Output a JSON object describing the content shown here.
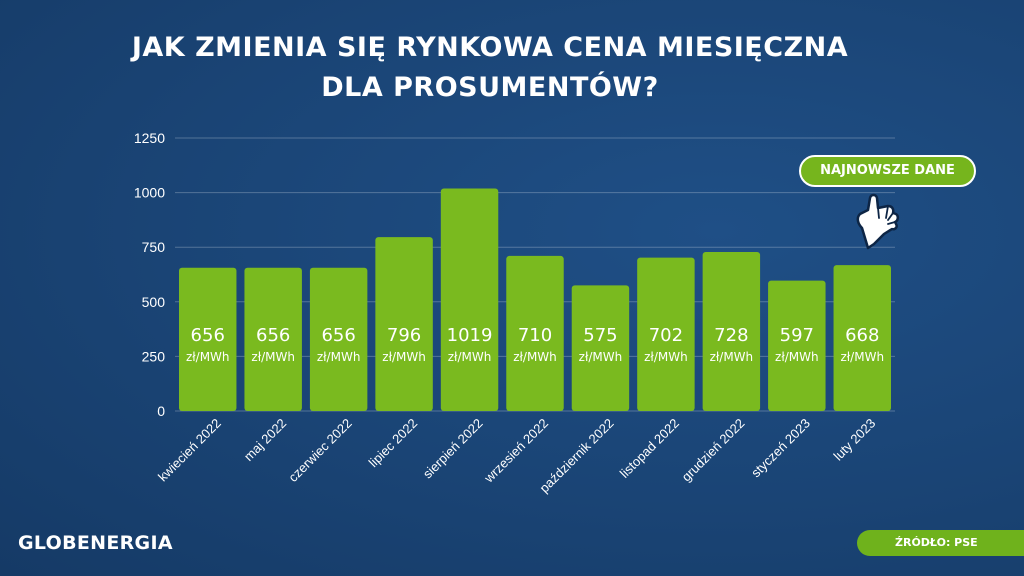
{
  "title": {
    "line1": "JAK ZMIENIA SIĘ RYNKOWA CENA MIESIĘCZNA",
    "line2": "DLA PROSUMENTÓW?"
  },
  "badge_label": "NAJNOWSZE DANE",
  "brand": "GLOBENERGIA",
  "source": "ŹRÓDŁO: PSE",
  "colors": {
    "bar": "#7aba1f",
    "accent": "#6fb21c",
    "background": "#1a4475",
    "text": "#ffffff"
  },
  "chart_data": {
    "type": "bar",
    "categories": [
      "kwiecień 2022",
      "maj 2022",
      "czerwiec 2022",
      "lipiec 2022",
      "sierpień 2022",
      "wrzesień 2022",
      "październik 2022",
      "listopad 2022",
      "grudzień 2022",
      "styczeń 2023",
      "luty 2023"
    ],
    "values": [
      656,
      656,
      656,
      796,
      1019,
      710,
      575,
      702,
      728,
      597,
      668
    ],
    "value_unit": "zł/MWh",
    "yticks": [
      0,
      250,
      500,
      750,
      1000,
      1250
    ],
    "ylim": [
      0,
      1250
    ],
    "grid": true
  }
}
